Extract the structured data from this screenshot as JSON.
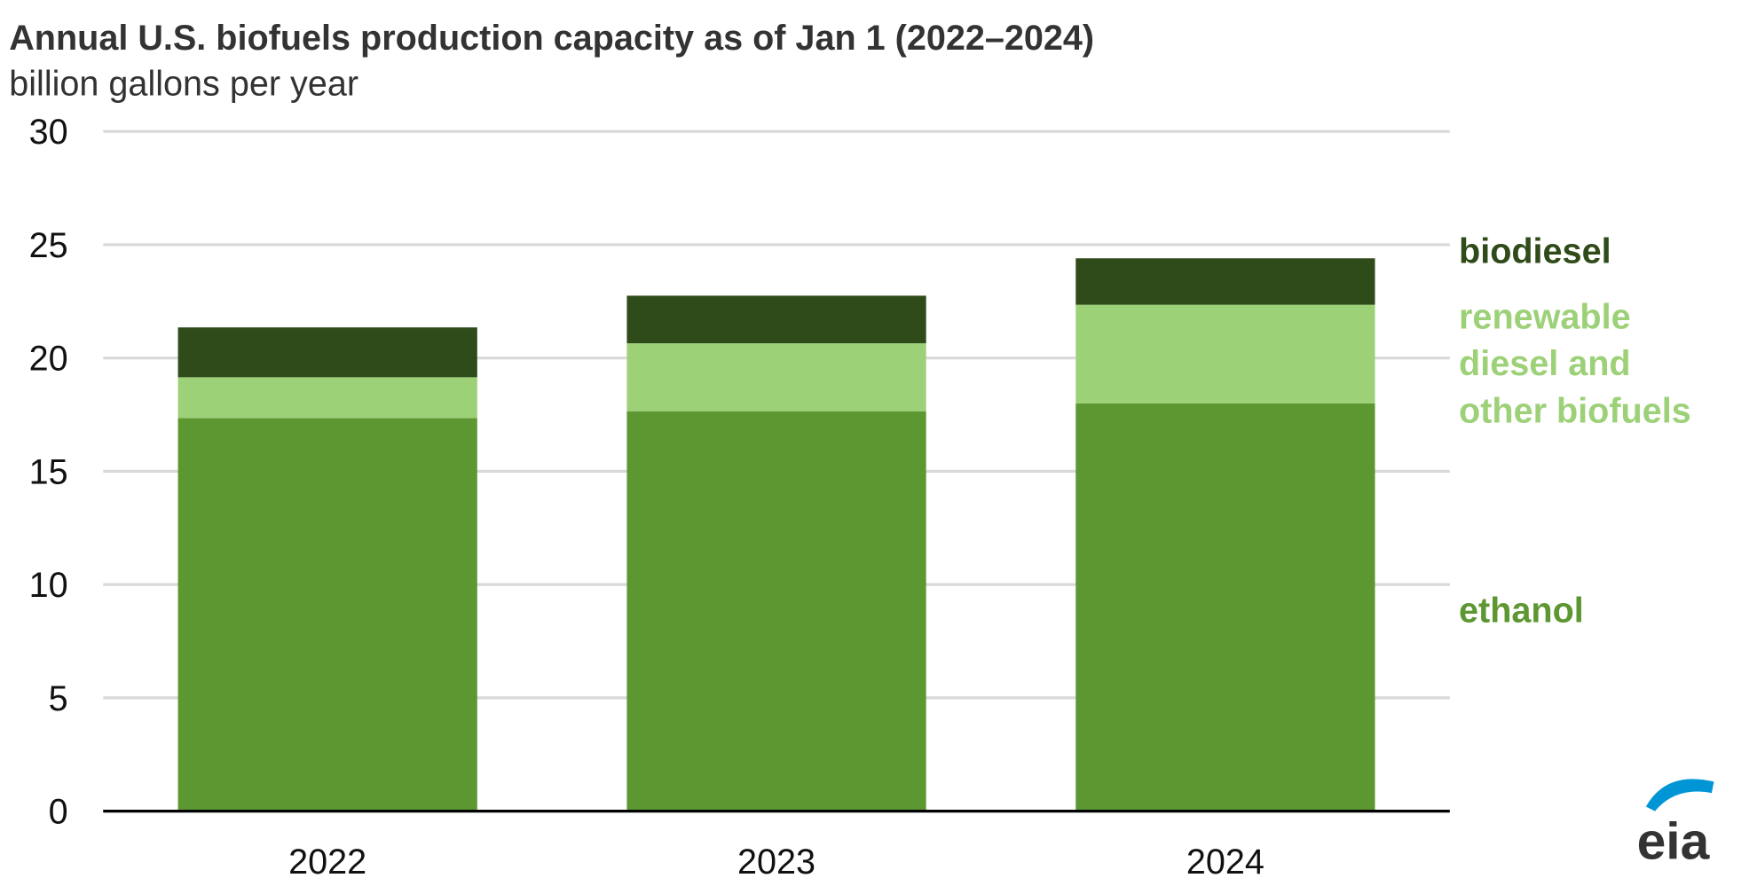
{
  "chart_data": {
    "type": "bar",
    "stacked": true,
    "title": "Annual U.S. biofuels production capacity as of Jan 1 (2022–2024)",
    "subtitle": "billion gallons per year",
    "xlabel": "",
    "ylabel": "",
    "categories": [
      "2022",
      "2023",
      "2024"
    ],
    "ylim": [
      0,
      30
    ],
    "yticks": [
      "0",
      "5",
      "10",
      "15",
      "20",
      "25",
      "30"
    ],
    "grid": true,
    "legend_placement": "right (inline labels)",
    "series": [
      {
        "name": "ethanol",
        "color": "#5d9732",
        "values": [
          17.35,
          17.65,
          18.0
        ]
      },
      {
        "name": "renewable diesel and other biofuels",
        "color": "#9dd178",
        "values": [
          1.8,
          3.0,
          4.35
        ]
      },
      {
        "name": "biodiesel",
        "color": "#2f4b1a",
        "values": [
          2.2,
          2.1,
          2.05
        ]
      }
    ],
    "series_labels": {
      "biodiesel": [
        "biodiesel"
      ],
      "renewable": [
        "renewable",
        "diesel and",
        "other biofuels"
      ],
      "ethanol": [
        "ethanol"
      ]
    }
  },
  "logo": "eia"
}
